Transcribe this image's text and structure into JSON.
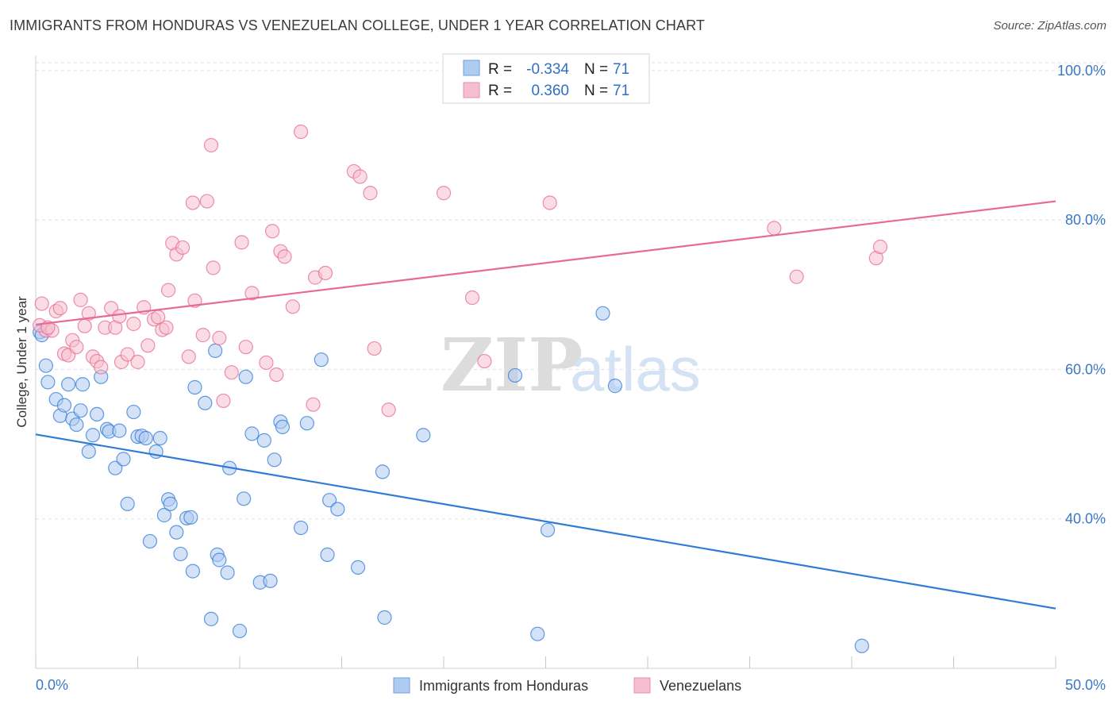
{
  "title": "IMMIGRANTS FROM HONDURAS VS VENEZUELAN COLLEGE, UNDER 1 YEAR CORRELATION CHART",
  "source": "Source: ZipAtlas.com",
  "watermark": {
    "part1": "ZIP",
    "part2": "atlas"
  },
  "colors": {
    "honduras": "#2f7bd6",
    "honduras_fill": "#aecbf0",
    "venezuelans": "#e86a93",
    "venezuelans_fill": "#f6bfd0",
    "axis_text": "#3b78c4",
    "grid": "#dde3ea"
  },
  "legend_top": {
    "rows": [
      {
        "series": "honduras",
        "r_label": "R =",
        "r_value": "-0.334",
        "n_label": "N =",
        "n_value": "71"
      },
      {
        "series": "venezuelans",
        "r_label": "R =",
        "r_value": "0.360",
        "n_label": "N =",
        "n_value": "71"
      }
    ]
  },
  "chart_data": {
    "type": "scatter",
    "title": "IMMIGRANTS FROM HONDURAS VS VENEZUELAN COLLEGE, UNDER 1 YEAR CORRELATION CHART",
    "xlabel": "",
    "ylabel": "College, Under 1 year",
    "xlim": [
      0,
      50
    ],
    "ylim": [
      20,
      102
    ],
    "x_tick_labels": [
      "0.0%",
      "50.0%"
    ],
    "y_ticks": [
      40,
      60,
      80,
      100
    ],
    "y_tick_labels": [
      "40.0%",
      "60.0%",
      "80.0%",
      "100.0%"
    ],
    "grid": true,
    "legend_position": "bottom-center",
    "series": [
      {
        "name": "Immigrants from Honduras",
        "key": "honduras",
        "r": -0.334,
        "n": 71,
        "trend": {
          "x": [
            0,
            50
          ],
          "y": [
            51.3,
            28.0
          ]
        },
        "points": [
          [
            0.2,
            65.0
          ],
          [
            0.5,
            60.5
          ],
          [
            0.6,
            58.3
          ],
          [
            1.0,
            56.0
          ],
          [
            1.2,
            53.8
          ],
          [
            1.4,
            55.2
          ],
          [
            1.6,
            58.0
          ],
          [
            1.8,
            53.4
          ],
          [
            2.0,
            52.6
          ],
          [
            2.2,
            54.5
          ],
          [
            2.3,
            58.0
          ],
          [
            2.6,
            49.0
          ],
          [
            2.8,
            51.2
          ],
          [
            3.0,
            54.0
          ],
          [
            3.2,
            59.0
          ],
          [
            3.5,
            52.0
          ],
          [
            3.6,
            51.7
          ],
          [
            3.9,
            46.8
          ],
          [
            4.1,
            51.8
          ],
          [
            4.3,
            48.0
          ],
          [
            4.5,
            42.0
          ],
          [
            4.8,
            54.3
          ],
          [
            5.0,
            51.0
          ],
          [
            5.2,
            51.1
          ],
          [
            5.4,
            50.8
          ],
          [
            5.6,
            37.0
          ],
          [
            5.9,
            49.0
          ],
          [
            6.1,
            50.8
          ],
          [
            6.3,
            40.5
          ],
          [
            6.5,
            42.6
          ],
          [
            6.6,
            42.0
          ],
          [
            6.9,
            38.2
          ],
          [
            7.1,
            35.3
          ],
          [
            7.4,
            40.1
          ],
          [
            7.6,
            40.2
          ],
          [
            7.7,
            33.0
          ],
          [
            7.8,
            57.6
          ],
          [
            8.3,
            55.5
          ],
          [
            8.6,
            26.6
          ],
          [
            8.8,
            62.5
          ],
          [
            8.9,
            35.2
          ],
          [
            9.0,
            34.5
          ],
          [
            9.4,
            32.8
          ],
          [
            9.5,
            46.8
          ],
          [
            10.0,
            25.0
          ],
          [
            10.2,
            42.7
          ],
          [
            10.3,
            59.0
          ],
          [
            10.6,
            51.4
          ],
          [
            11.0,
            31.5
          ],
          [
            11.2,
            50.5
          ],
          [
            11.5,
            31.7
          ],
          [
            11.7,
            47.9
          ],
          [
            12.0,
            53.0
          ],
          [
            12.1,
            52.3
          ],
          [
            13.0,
            38.8
          ],
          [
            13.3,
            52.8
          ],
          [
            14.0,
            61.3
          ],
          [
            14.3,
            35.2
          ],
          [
            14.4,
            42.5
          ],
          [
            14.8,
            41.3
          ],
          [
            15.8,
            33.5
          ],
          [
            17.0,
            46.3
          ],
          [
            17.1,
            26.8
          ],
          [
            19.0,
            51.2
          ],
          [
            23.5,
            59.2
          ],
          [
            24.6,
            24.6
          ],
          [
            25.1,
            38.5
          ],
          [
            27.8,
            67.5
          ],
          [
            28.4,
            57.8
          ],
          [
            40.5,
            23.0
          ],
          [
            0.3,
            64.6
          ]
        ]
      },
      {
        "name": "Venezuelans",
        "key": "venezuelans",
        "r": 0.36,
        "n": 71,
        "trend": {
          "x": [
            0,
            50
          ],
          "y": [
            66.0,
            82.5
          ]
        },
        "points": [
          [
            0.3,
            68.8
          ],
          [
            0.5,
            65.2
          ],
          [
            0.8,
            65.2
          ],
          [
            1.0,
            67.8
          ],
          [
            1.2,
            68.2
          ],
          [
            1.4,
            62.1
          ],
          [
            1.6,
            61.9
          ],
          [
            1.8,
            63.9
          ],
          [
            2.0,
            63.0
          ],
          [
            2.2,
            69.3
          ],
          [
            2.4,
            65.8
          ],
          [
            2.6,
            67.5
          ],
          [
            2.8,
            61.7
          ],
          [
            3.0,
            61.1
          ],
          [
            3.2,
            60.3
          ],
          [
            3.4,
            65.6
          ],
          [
            3.7,
            68.2
          ],
          [
            3.9,
            65.6
          ],
          [
            4.1,
            67.1
          ],
          [
            4.2,
            61.0
          ],
          [
            4.5,
            62.0
          ],
          [
            4.8,
            66.1
          ],
          [
            5.0,
            61.0
          ],
          [
            5.3,
            68.3
          ],
          [
            5.5,
            63.2
          ],
          [
            5.8,
            66.7
          ],
          [
            6.0,
            67.0
          ],
          [
            6.2,
            65.3
          ],
          [
            6.4,
            65.6
          ],
          [
            6.5,
            70.6
          ],
          [
            6.7,
            76.9
          ],
          [
            6.9,
            75.4
          ],
          [
            7.2,
            76.3
          ],
          [
            7.5,
            61.7
          ],
          [
            7.7,
            82.3
          ],
          [
            7.8,
            69.2
          ],
          [
            8.2,
            64.6
          ],
          [
            8.4,
            82.5
          ],
          [
            8.6,
            90.0
          ],
          [
            8.7,
            73.6
          ],
          [
            9.0,
            64.2
          ],
          [
            9.2,
            55.8
          ],
          [
            9.6,
            59.6
          ],
          [
            10.1,
            77.0
          ],
          [
            10.3,
            63.0
          ],
          [
            10.6,
            70.2
          ],
          [
            11.3,
            60.9
          ],
          [
            11.6,
            78.5
          ],
          [
            11.8,
            59.3
          ],
          [
            12.0,
            75.8
          ],
          [
            12.2,
            75.1
          ],
          [
            12.6,
            68.4
          ],
          [
            13.0,
            91.8
          ],
          [
            13.6,
            55.3
          ],
          [
            13.7,
            72.3
          ],
          [
            14.2,
            72.9
          ],
          [
            15.6,
            86.5
          ],
          [
            15.9,
            85.8
          ],
          [
            16.4,
            83.6
          ],
          [
            16.6,
            62.8
          ],
          [
            17.3,
            54.6
          ],
          [
            20.0,
            83.6
          ],
          [
            21.4,
            69.6
          ],
          [
            22.0,
            61.1
          ],
          [
            25.2,
            82.3
          ],
          [
            36.2,
            78.9
          ],
          [
            37.3,
            72.4
          ],
          [
            41.2,
            74.9
          ],
          [
            41.4,
            76.4
          ],
          [
            0.2,
            65.9
          ],
          [
            0.6,
            65.6
          ]
        ]
      }
    ]
  }
}
